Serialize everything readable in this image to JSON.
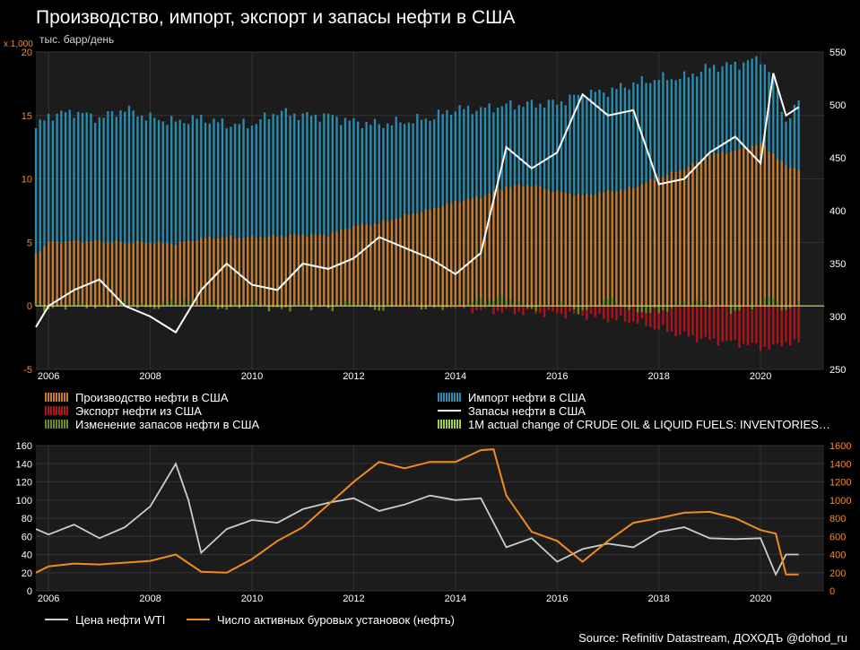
{
  "title": "Производство, импорт, экспорт и запасы нефти в США",
  "multiplier": "x 1,000",
  "unit": "тыс. барр/день",
  "source": "Source: Refinitiv Datastream, ДОХОДЪ @dohod_ru",
  "colors": {
    "production": "#c97a2a",
    "imports": "#2a8cb0",
    "exports": "#b3131b",
    "inventory_change": "#6b8a20",
    "inventories": "#ffffff",
    "actual_change": "#a0d040",
    "wti": "#cccccc",
    "rigs": "#f08c1e",
    "left_axis_top": "#f08c32",
    "right_axis_bottom": "#f08c32"
  },
  "legend_top": [
    {
      "label": "Производство нефти в США",
      "key": "production",
      "style": "bar"
    },
    {
      "label": "Импорт нефти в США",
      "key": "imports",
      "style": "bar"
    },
    {
      "label": "Экспорт нефти из США",
      "key": "exports",
      "style": "bar"
    },
    {
      "label": "Запасы нефти в США",
      "key": "inventories",
      "style": "line"
    },
    {
      "label": "Изменение запасов нефти в США",
      "key": "inventory_change",
      "style": "bar"
    },
    {
      "label": "1M actual change of CRUDE OIL & LIQUID FUELS: INVENTORIES…",
      "key": "actual_change",
      "style": "bar"
    }
  ],
  "legend_bottom": [
    {
      "label": "Цена нефти WTI",
      "key": "wti"
    },
    {
      "label": "Число активных буровых установок (нефть)",
      "key": "rigs"
    }
  ],
  "chart_data": [
    {
      "type": "bar",
      "title": "Производство, импорт, экспорт и запасы нефти в США",
      "ylabel": "тыс. барр/день",
      "y_multiplier": "x 1,000",
      "ylim": [
        -5,
        20
      ],
      "y2lim": [
        250,
        550
      ],
      "x_ticks": [
        "2006",
        "2008",
        "2010",
        "2012",
        "2014",
        "2016",
        "2018",
        "2020"
      ],
      "y_ticks": [
        "-5",
        "0",
        "5",
        "10",
        "15",
        "20"
      ],
      "y2_ticks": [
        "250",
        "300",
        "350",
        "400",
        "450",
        "500",
        "550"
      ],
      "grid": true,
      "legend_position": "bottom",
      "x_time": [
        2005.75,
        2006.0,
        2006.5,
        2007.0,
        2007.5,
        2008.0,
        2008.5,
        2009.0,
        2009.5,
        2010.0,
        2010.5,
        2011.0,
        2011.5,
        2012.0,
        2012.5,
        2013.0,
        2013.5,
        2014.0,
        2014.5,
        2015.0,
        2015.5,
        2016.0,
        2016.5,
        2017.0,
        2017.5,
        2018.0,
        2018.5,
        2019.0,
        2019.5,
        2020.0,
        2020.25,
        2020.5,
        2020.75
      ],
      "series": [
        {
          "name": "Производство нефти в США",
          "axis": "left",
          "type": "bar",
          "values": [
            4.1,
            5.0,
            5.1,
            5.1,
            5.0,
            5.0,
            4.9,
            5.3,
            5.4,
            5.4,
            5.5,
            5.6,
            5.6,
            6.3,
            6.5,
            7.1,
            7.6,
            8.2,
            8.6,
            9.4,
            9.5,
            9.0,
            8.7,
            9.0,
            9.3,
            10.1,
            10.8,
            11.9,
            12.2,
            12.8,
            12.0,
            11.0,
            10.8
          ]
        },
        {
          "name": "Импорт нефти в США",
          "axis": "left",
          "type": "bar",
          "values": [
            14.0,
            15.0,
            15.3,
            14.8,
            15.5,
            14.8,
            14.5,
            14.8,
            14.3,
            14.3,
            15.3,
            15.0,
            15.0,
            14.5,
            14.3,
            14.5,
            14.8,
            15.5,
            15.5,
            15.8,
            15.9,
            16.0,
            16.7,
            16.9,
            17.5,
            17.9,
            18.0,
            18.8,
            19.0,
            19.5,
            18.0,
            14.5,
            16.0
          ]
        },
        {
          "name": "Экспорт нефти из США",
          "axis": "left",
          "type": "bar",
          "values": [
            0.0,
            0.0,
            0.0,
            0.0,
            0.0,
            0.0,
            0.0,
            0.0,
            0.0,
            0.0,
            0.0,
            0.0,
            0.0,
            0.0,
            0.0,
            -0.1,
            -0.1,
            -0.2,
            -0.3,
            -0.4,
            -0.5,
            -0.6,
            -0.7,
            -1.0,
            -1.2,
            -1.8,
            -2.3,
            -2.7,
            -2.9,
            -3.2,
            -3.3,
            -2.8,
            -3.0
          ]
        },
        {
          "name": "Изменение запасов нефти в США",
          "axis": "left",
          "type": "bar",
          "values": [
            0.2,
            -0.3,
            0.2,
            -0.1,
            0.3,
            -0.2,
            0.4,
            0.3,
            -0.2,
            0.2,
            -0.3,
            0.1,
            -0.2,
            0.3,
            -0.3,
            0.2,
            -0.2,
            0.1,
            0.4,
            0.6,
            -0.2,
            0.3,
            -0.5,
            0.6,
            -0.4,
            -0.5,
            0.3,
            0.2,
            -0.4,
            0.2,
            0.8,
            -0.6,
            0.4
          ]
        },
        {
          "name": "Запасы нефти в США",
          "axis": "right",
          "type": "line",
          "values": [
            290,
            310,
            325,
            335,
            310,
            300,
            285,
            325,
            350,
            330,
            325,
            350,
            345,
            355,
            375,
            365,
            355,
            340,
            360,
            460,
            440,
            455,
            510,
            490,
            495,
            425,
            430,
            455,
            470,
            445,
            530,
            490,
            498
          ]
        }
      ]
    },
    {
      "type": "line",
      "ylim": [
        0,
        160
      ],
      "y2lim": [
        0,
        1600
      ],
      "x_ticks": [
        "2006",
        "2008",
        "2010",
        "2012",
        "2014",
        "2016",
        "2018",
        "2020"
      ],
      "y_ticks": [
        "0",
        "20",
        "40",
        "60",
        "80",
        "100",
        "120",
        "140",
        "160"
      ],
      "y2_ticks": [
        "0",
        "200",
        "400",
        "600",
        "800",
        "1000",
        "1200",
        "1400",
        "1600"
      ],
      "grid": true,
      "legend_position": "bottom",
      "series": [
        {
          "name": "Цена нефти WTI",
          "axis": "left",
          "x": [
            2005.75,
            2006.0,
            2006.5,
            2007.0,
            2007.5,
            2008.0,
            2008.5,
            2008.75,
            2009.0,
            2009.5,
            2010.0,
            2010.5,
            2011.0,
            2011.5,
            2012.0,
            2012.5,
            2013.0,
            2013.5,
            2014.0,
            2014.5,
            2015.0,
            2015.5,
            2016.0,
            2016.5,
            2017.0,
            2017.5,
            2018.0,
            2018.5,
            2019.0,
            2019.5,
            2020.0,
            2020.3,
            2020.5,
            2020.75
          ],
          "values": [
            68,
            62,
            73,
            58,
            70,
            93,
            140,
            100,
            42,
            68,
            78,
            75,
            90,
            97,
            102,
            88,
            95,
            105,
            100,
            102,
            48,
            58,
            32,
            46,
            52,
            48,
            65,
            70,
            58,
            57,
            58,
            18,
            40,
            40
          ]
        },
        {
          "name": "Число активных буровых установок (нефть)",
          "axis": "right",
          "x": [
            2005.75,
            2006.0,
            2006.5,
            2007.0,
            2007.5,
            2008.0,
            2008.5,
            2009.0,
            2009.5,
            2010.0,
            2010.5,
            2011.0,
            2011.5,
            2012.0,
            2012.5,
            2013.0,
            2013.5,
            2014.0,
            2014.5,
            2014.75,
            2015.0,
            2015.5,
            2016.0,
            2016.5,
            2017.0,
            2017.5,
            2018.0,
            2018.5,
            2019.0,
            2019.5,
            2020.0,
            2020.3,
            2020.5,
            2020.75
          ],
          "values": [
            200,
            270,
            300,
            290,
            310,
            330,
            400,
            210,
            200,
            350,
            550,
            700,
            950,
            1200,
            1420,
            1350,
            1420,
            1420,
            1550,
            1560,
            1050,
            650,
            550,
            320,
            550,
            750,
            800,
            860,
            870,
            800,
            670,
            630,
            180,
            180
          ]
        }
      ]
    }
  ]
}
